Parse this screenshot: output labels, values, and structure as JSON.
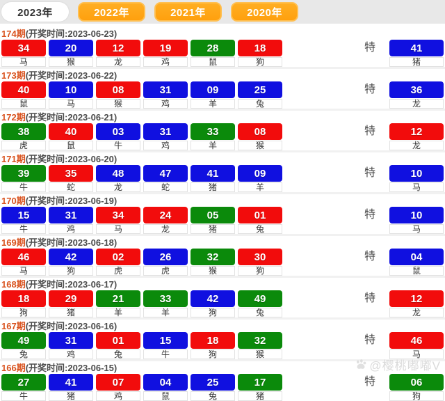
{
  "tabs": [
    {
      "label": "2023年",
      "active": true
    },
    {
      "label": "2022年",
      "active": false
    },
    {
      "label": "2021年",
      "active": false
    },
    {
      "label": "2020年",
      "active": false
    }
  ],
  "special_label": "特",
  "colors": {
    "red": "#f20c0c",
    "blue": "#1010e0",
    "green": "#0b8a0b",
    "tab_orange": "#ffa516",
    "period_accent": "#d9531f"
  },
  "watermark": {
    "text": "@樱桃嘟嘟V",
    "icon": "paw-icon"
  },
  "draws": [
    {
      "period": "174期",
      "time": "(开奖时间:2023-06-23)",
      "balls": [
        {
          "num": "34",
          "zodiac": "马",
          "color": "red"
        },
        {
          "num": "20",
          "zodiac": "猴",
          "color": "blue"
        },
        {
          "num": "12",
          "zodiac": "龙",
          "color": "red"
        },
        {
          "num": "19",
          "zodiac": "鸡",
          "color": "red"
        },
        {
          "num": "28",
          "zodiac": "鼠",
          "color": "green"
        },
        {
          "num": "18",
          "zodiac": "狗",
          "color": "red"
        }
      ],
      "special": {
        "num": "41",
        "zodiac": "猪",
        "color": "blue"
      }
    },
    {
      "period": "173期",
      "time": "(开奖时间:2023-06-22)",
      "balls": [
        {
          "num": "40",
          "zodiac": "鼠",
          "color": "red"
        },
        {
          "num": "10",
          "zodiac": "马",
          "color": "blue"
        },
        {
          "num": "08",
          "zodiac": "猴",
          "color": "red"
        },
        {
          "num": "31",
          "zodiac": "鸡",
          "color": "blue"
        },
        {
          "num": "09",
          "zodiac": "羊",
          "color": "blue"
        },
        {
          "num": "25",
          "zodiac": "兔",
          "color": "blue"
        }
      ],
      "special": {
        "num": "36",
        "zodiac": "龙",
        "color": "blue"
      }
    },
    {
      "period": "172期",
      "time": "(开奖时间:2023-06-21)",
      "balls": [
        {
          "num": "38",
          "zodiac": "虎",
          "color": "green"
        },
        {
          "num": "40",
          "zodiac": "鼠",
          "color": "red"
        },
        {
          "num": "03",
          "zodiac": "牛",
          "color": "blue"
        },
        {
          "num": "31",
          "zodiac": "鸡",
          "color": "blue"
        },
        {
          "num": "33",
          "zodiac": "羊",
          "color": "green"
        },
        {
          "num": "08",
          "zodiac": "猴",
          "color": "red"
        }
      ],
      "special": {
        "num": "12",
        "zodiac": "龙",
        "color": "red"
      }
    },
    {
      "period": "171期",
      "time": "(开奖时间:2023-06-20)",
      "balls": [
        {
          "num": "39",
          "zodiac": "牛",
          "color": "green"
        },
        {
          "num": "35",
          "zodiac": "蛇",
          "color": "red"
        },
        {
          "num": "48",
          "zodiac": "龙",
          "color": "blue"
        },
        {
          "num": "47",
          "zodiac": "蛇",
          "color": "blue"
        },
        {
          "num": "41",
          "zodiac": "猪",
          "color": "blue"
        },
        {
          "num": "09",
          "zodiac": "羊",
          "color": "blue"
        }
      ],
      "special": {
        "num": "10",
        "zodiac": "马",
        "color": "blue"
      }
    },
    {
      "period": "170期",
      "time": "(开奖时间:2023-06-19)",
      "balls": [
        {
          "num": "15",
          "zodiac": "牛",
          "color": "blue"
        },
        {
          "num": "31",
          "zodiac": "鸡",
          "color": "blue"
        },
        {
          "num": "34",
          "zodiac": "马",
          "color": "red"
        },
        {
          "num": "24",
          "zodiac": "龙",
          "color": "red"
        },
        {
          "num": "05",
          "zodiac": "猪",
          "color": "green"
        },
        {
          "num": "01",
          "zodiac": "兔",
          "color": "red"
        }
      ],
      "special": {
        "num": "10",
        "zodiac": "马",
        "color": "blue"
      }
    },
    {
      "period": "169期",
      "time": "(开奖时间:2023-06-18)",
      "balls": [
        {
          "num": "46",
          "zodiac": "马",
          "color": "red"
        },
        {
          "num": "42",
          "zodiac": "狗",
          "color": "blue"
        },
        {
          "num": "02",
          "zodiac": "虎",
          "color": "red"
        },
        {
          "num": "26",
          "zodiac": "虎",
          "color": "blue"
        },
        {
          "num": "32",
          "zodiac": "猴",
          "color": "green"
        },
        {
          "num": "30",
          "zodiac": "狗",
          "color": "red"
        }
      ],
      "special": {
        "num": "04",
        "zodiac": "鼠",
        "color": "blue"
      }
    },
    {
      "period": "168期",
      "time": "(开奖时间:2023-06-17)",
      "balls": [
        {
          "num": "18",
          "zodiac": "狗",
          "color": "red"
        },
        {
          "num": "29",
          "zodiac": "猪",
          "color": "red"
        },
        {
          "num": "21",
          "zodiac": "羊",
          "color": "green"
        },
        {
          "num": "33",
          "zodiac": "羊",
          "color": "green"
        },
        {
          "num": "42",
          "zodiac": "狗",
          "color": "blue"
        },
        {
          "num": "49",
          "zodiac": "兔",
          "color": "green"
        }
      ],
      "special": {
        "num": "12",
        "zodiac": "龙",
        "color": "red"
      }
    },
    {
      "period": "167期",
      "time": "(开奖时间:2023-06-16)",
      "balls": [
        {
          "num": "49",
          "zodiac": "兔",
          "color": "green"
        },
        {
          "num": "31",
          "zodiac": "鸡",
          "color": "blue"
        },
        {
          "num": "01",
          "zodiac": "兔",
          "color": "red"
        },
        {
          "num": "15",
          "zodiac": "牛",
          "color": "blue"
        },
        {
          "num": "18",
          "zodiac": "狗",
          "color": "red"
        },
        {
          "num": "32",
          "zodiac": "猴",
          "color": "green"
        }
      ],
      "special": {
        "num": "46",
        "zodiac": "马",
        "color": "red"
      }
    },
    {
      "period": "166期",
      "time": "(开奖时间:2023-06-15)",
      "balls": [
        {
          "num": "27",
          "zodiac": "牛",
          "color": "green"
        },
        {
          "num": "41",
          "zodiac": "猪",
          "color": "blue"
        },
        {
          "num": "07",
          "zodiac": "鸡",
          "color": "red"
        },
        {
          "num": "04",
          "zodiac": "鼠",
          "color": "blue"
        },
        {
          "num": "25",
          "zodiac": "兔",
          "color": "blue"
        },
        {
          "num": "17",
          "zodiac": "猪",
          "color": "green"
        }
      ],
      "special": {
        "num": "06",
        "zodiac": "狗",
        "color": "green"
      }
    }
  ]
}
